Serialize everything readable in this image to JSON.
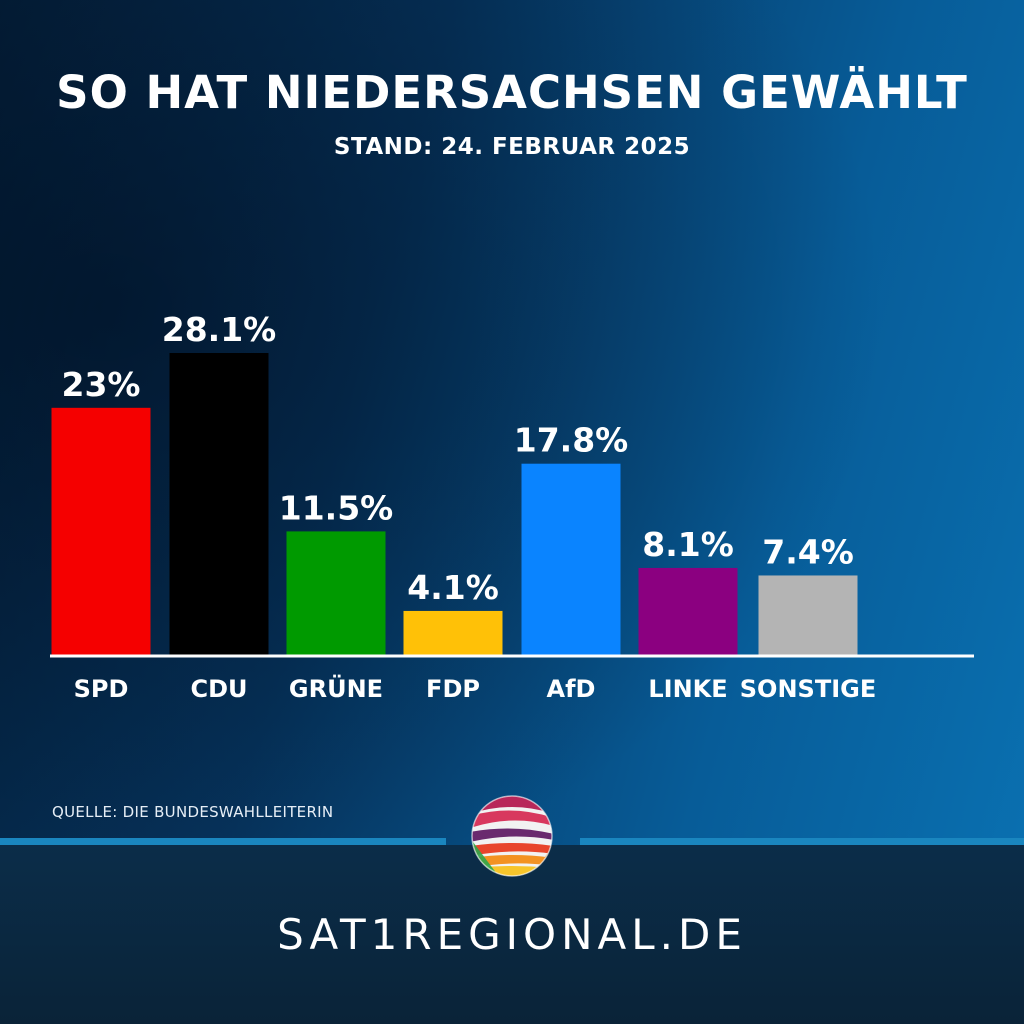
{
  "header": {
    "title": "SO HAT NIEDERSACHSEN GEWÄHLT",
    "subtitle": "STAND: 24. FEBRUAR 2025"
  },
  "chart_data": {
    "type": "bar",
    "categories": [
      "SPD",
      "CDU",
      "GRÜNE",
      "FDP",
      "AfD",
      "LINKE",
      "SONSTIGE"
    ],
    "values": [
      23,
      28.1,
      11.5,
      4.1,
      17.8,
      8.1,
      7.4
    ],
    "value_labels": [
      "23%",
      "28.1%",
      "11.5%",
      "4.1%",
      "17.8%",
      "8.1%",
      "7.4%"
    ],
    "colors": [
      "#f50000",
      "#000000",
      "#009a00",
      "#ffc107",
      "#0a84ff",
      "#8b0080",
      "#b4b4b4"
    ],
    "title": "SO HAT NIEDERSACHSEN GEWÄHLT",
    "subtitle": "STAND: 24. FEBRUAR 2025",
    "ylim": [
      0,
      28.1
    ],
    "grid": false,
    "legend": "none"
  },
  "source": "QUELLE: DIE BUNDESWAHLLEITERIN",
  "footer": {
    "website": "SAT1REGIONAL.DE",
    "logo_icon": "sat1-ball-logo-icon"
  },
  "colors": {
    "background_dark": "#04213d",
    "background_light": "#0a72b3",
    "accent_line": "#1a86bf",
    "footer_bg": "#0a2338",
    "text": "#ffffff"
  }
}
